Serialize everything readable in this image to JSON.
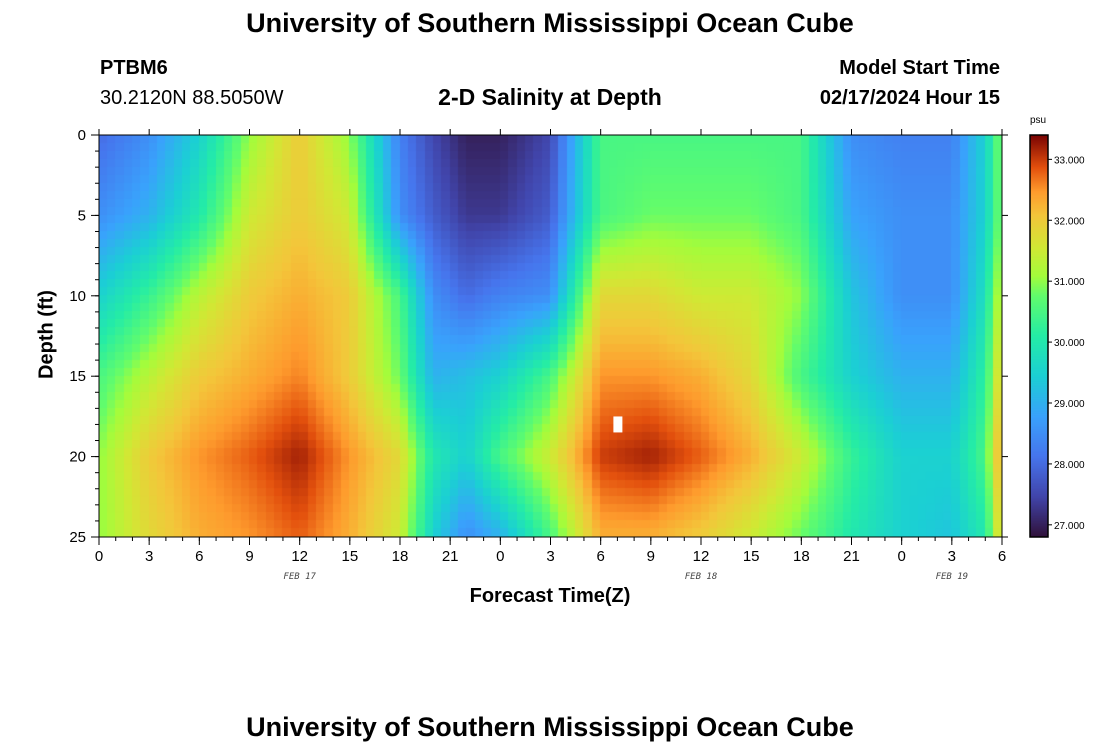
{
  "page": {
    "title": "University of Southern Mississippi Ocean Cube",
    "footer_title": "University of Southern Mississippi Ocean Cube",
    "station_id": "PTBM6",
    "coords": "30.2120N  88.5050W",
    "plot_title": "2-D Salinity at Depth",
    "model_start_label": "Model Start Time",
    "model_start_value": "02/17/2024 Hour 15"
  },
  "colors": {
    "background": "#ffffff",
    "marker": "#ffffff",
    "axis": "#000000"
  },
  "chart_data": {
    "type": "heatmap",
    "variable": "Salinity",
    "units": "psu",
    "xlabel": "Forecast Time(Z)",
    "ylabel": "Depth (ft)",
    "xlim": [
      0,
      54
    ],
    "ylim": [
      0,
      25
    ],
    "y_inverted": true,
    "x_ticks": [
      0,
      3,
      6,
      9,
      12,
      15,
      18,
      21,
      24,
      27,
      30,
      33,
      36,
      39,
      42,
      45,
      48,
      51,
      54
    ],
    "x_tick_labels": [
      "0",
      "3",
      "6",
      "9",
      "12",
      "15",
      "18",
      "21",
      "0",
      "3",
      "6",
      "9",
      "12",
      "15",
      "18",
      "21",
      "0",
      "3",
      "6"
    ],
    "y_ticks": [
      0,
      5,
      10,
      15,
      20,
      25
    ],
    "y_tick_labels": [
      "0",
      "5",
      "10",
      "15",
      "20",
      "25"
    ],
    "date_labels": [
      {
        "text": "FEB 17",
        "x": 12
      },
      {
        "text": "FEB 18",
        "x": 36
      },
      {
        "text": "FEB 19",
        "x": 51
      }
    ],
    "colorbar": {
      "units": "psu",
      "range": [
        26.8,
        33.4
      ],
      "ticks": [
        27,
        28,
        29,
        30,
        31,
        32,
        33
      ],
      "tick_labels": [
        "27.000",
        "28.000",
        "29.000",
        "30.000",
        "31.000",
        "32.000",
        "33.000"
      ]
    },
    "x": [
      0,
      3,
      6,
      9,
      12,
      15,
      18,
      20,
      22,
      24,
      27,
      30,
      33,
      36,
      39,
      42,
      45,
      48,
      51,
      53,
      54
    ],
    "depths": [
      0,
      5,
      10,
      15,
      20,
      25
    ],
    "values": [
      [
        28.0,
        28.5,
        29.5,
        31.0,
        32.0,
        31.0,
        28.3,
        27.5,
        27.0,
        27.0,
        27.5,
        30.5,
        30.5,
        30.5,
        30.5,
        30.5,
        28.5,
        28.3,
        28.3,
        29.5,
        31.0
      ],
      [
        28.5,
        29.0,
        30.0,
        31.5,
        32.0,
        31.5,
        28.5,
        27.8,
        27.3,
        27.3,
        27.8,
        30.5,
        30.8,
        30.8,
        30.8,
        30.5,
        28.8,
        28.5,
        28.5,
        29.5,
        31.0
      ],
      [
        29.5,
        30.3,
        31.3,
        32.0,
        32.3,
        32.0,
        30.5,
        28.5,
        28.0,
        28.3,
        28.5,
        31.8,
        31.8,
        31.5,
        31.5,
        31.0,
        29.3,
        28.5,
        28.5,
        29.8,
        31.5
      ],
      [
        30.5,
        31.3,
        32.0,
        32.3,
        32.6,
        32.0,
        30.8,
        29.0,
        29.2,
        29.5,
        30.5,
        32.5,
        32.5,
        32.3,
        31.8,
        30.5,
        29.5,
        29.0,
        29.0,
        30.2,
        32.0
      ],
      [
        31.0,
        32.0,
        32.5,
        32.8,
        33.2,
        32.5,
        31.8,
        30.0,
        29.5,
        30.5,
        31.5,
        33.0,
        33.2,
        32.8,
        32.3,
        31.5,
        30.3,
        29.5,
        29.5,
        30.5,
        32.5
      ],
      [
        31.0,
        31.8,
        32.3,
        32.5,
        32.8,
        32.3,
        31.5,
        29.5,
        28.5,
        29.0,
        30.5,
        32.3,
        32.3,
        32.0,
        31.5,
        30.8,
        30.0,
        29.5,
        29.3,
        30.0,
        32.0
      ]
    ],
    "marker": {
      "x": 31,
      "depth": 18,
      "note": "white marker"
    }
  }
}
